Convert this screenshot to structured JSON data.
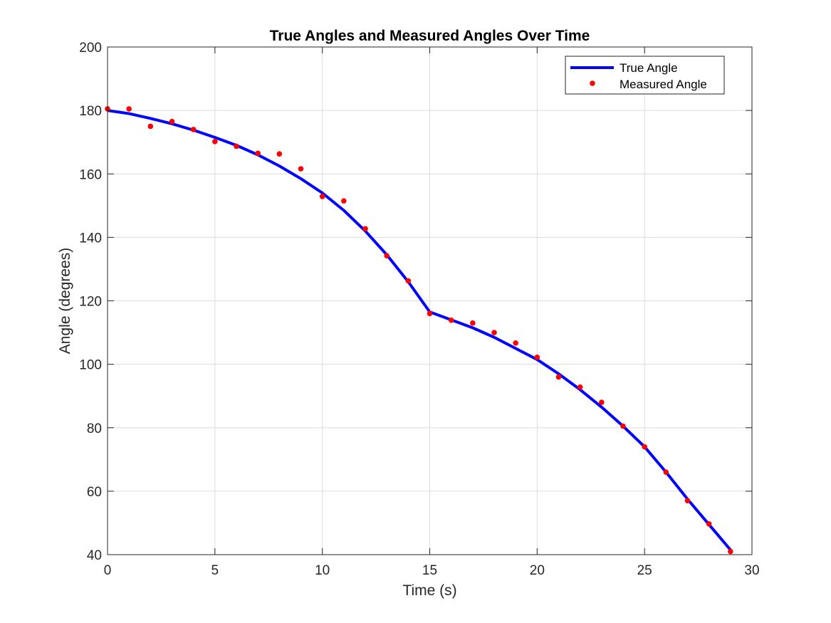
{
  "chart_data": {
    "type": "line",
    "title": "True Angles and Measured Angles Over Time",
    "xlabel": "Time (s)",
    "ylabel": "Angle (degrees)",
    "xlim": [
      0,
      30
    ],
    "ylim": [
      40,
      200
    ],
    "xticks": [
      0,
      5,
      10,
      15,
      20,
      25,
      30
    ],
    "yticks": [
      40,
      60,
      80,
      100,
      120,
      140,
      160,
      180,
      200
    ],
    "grid": true,
    "legend_position": "top-right",
    "x": [
      0,
      1,
      2,
      3,
      4,
      5,
      6,
      7,
      8,
      9,
      10,
      11,
      12,
      13,
      14,
      15,
      16,
      17,
      18,
      19,
      20,
      21,
      22,
      23,
      24,
      25,
      26,
      27,
      28,
      29
    ],
    "series": [
      {
        "name": "True Angle",
        "style": "line",
        "color": "#0000ff",
        "values": [
          180,
          179,
          177.5,
          175.8,
          173.8,
          171.5,
          169,
          166,
          162.5,
          158.5,
          154,
          148.5,
          142,
          134.5,
          126,
          116.5,
          114,
          111.5,
          108.5,
          105,
          101.5,
          97,
          92,
          86.5,
          80.5,
          74,
          66,
          57.5,
          49.5,
          41.5
        ]
      },
      {
        "name": "Measured Angle",
        "style": "markers",
        "color": "#ff0000",
        "values": [
          180.5,
          180.5,
          175,
          176.5,
          174,
          170.2,
          168.7,
          166.5,
          166.3,
          161.6,
          152.9,
          151.5,
          142.7,
          134.2,
          126.3,
          116,
          113.9,
          113,
          110,
          106.7,
          102.2,
          96,
          92.8,
          88,
          80.5,
          74,
          66,
          57,
          49.7,
          41
        ]
      }
    ]
  }
}
